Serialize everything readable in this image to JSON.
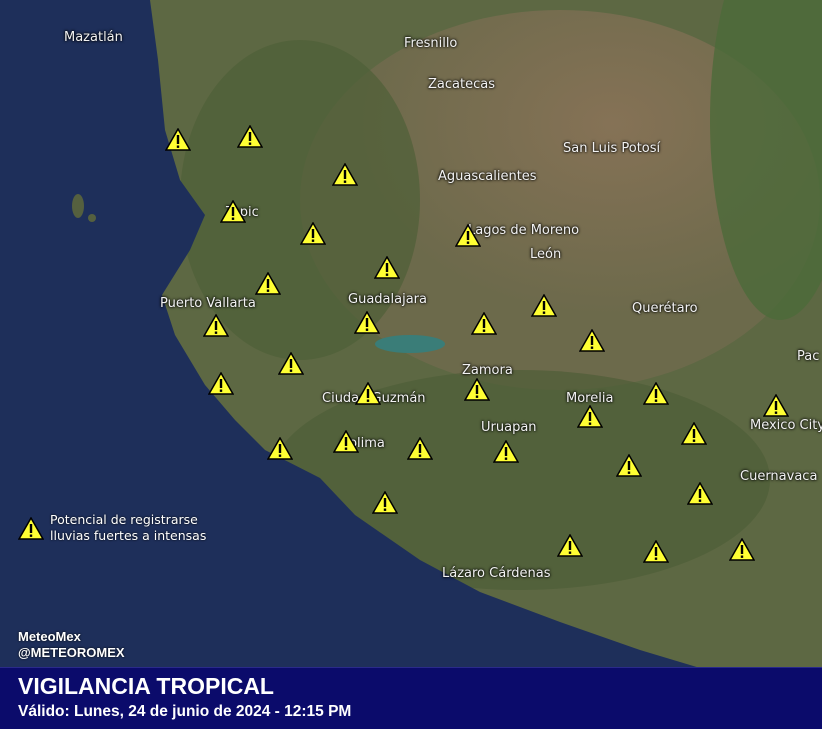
{
  "map": {
    "cities": [
      "Mazatlán",
      "Fresnillo",
      "Zacatecas",
      "San Luis Potosí",
      "Aguascalientes",
      "Tepic",
      "Lagos de Moreno",
      "León",
      "Puerto Vallarta",
      "Guadalajara",
      "Querétaro",
      "Pac",
      "Zamora",
      "Ciudad Guzmán",
      "Morelia",
      "Mexico City",
      "Uruapan",
      "Colima",
      "Cuernavaca",
      "Lázaro Cárdenas"
    ],
    "warning_icon": "warning-triangle-icon",
    "warning_color": "#ffff33"
  },
  "legend": {
    "line1": "Potencial de registrarse",
    "line2": "lluvias fuertes a intensas"
  },
  "credits": {
    "name": "MeteoMex",
    "handle": "@METEOROMEX"
  },
  "banner": {
    "title": "VIGILANCIA TROPICAL",
    "subtitle": "Válido: Lunes, 24 de junio de 2024 - 12:15 PM",
    "color": "#0b0b6b"
  }
}
